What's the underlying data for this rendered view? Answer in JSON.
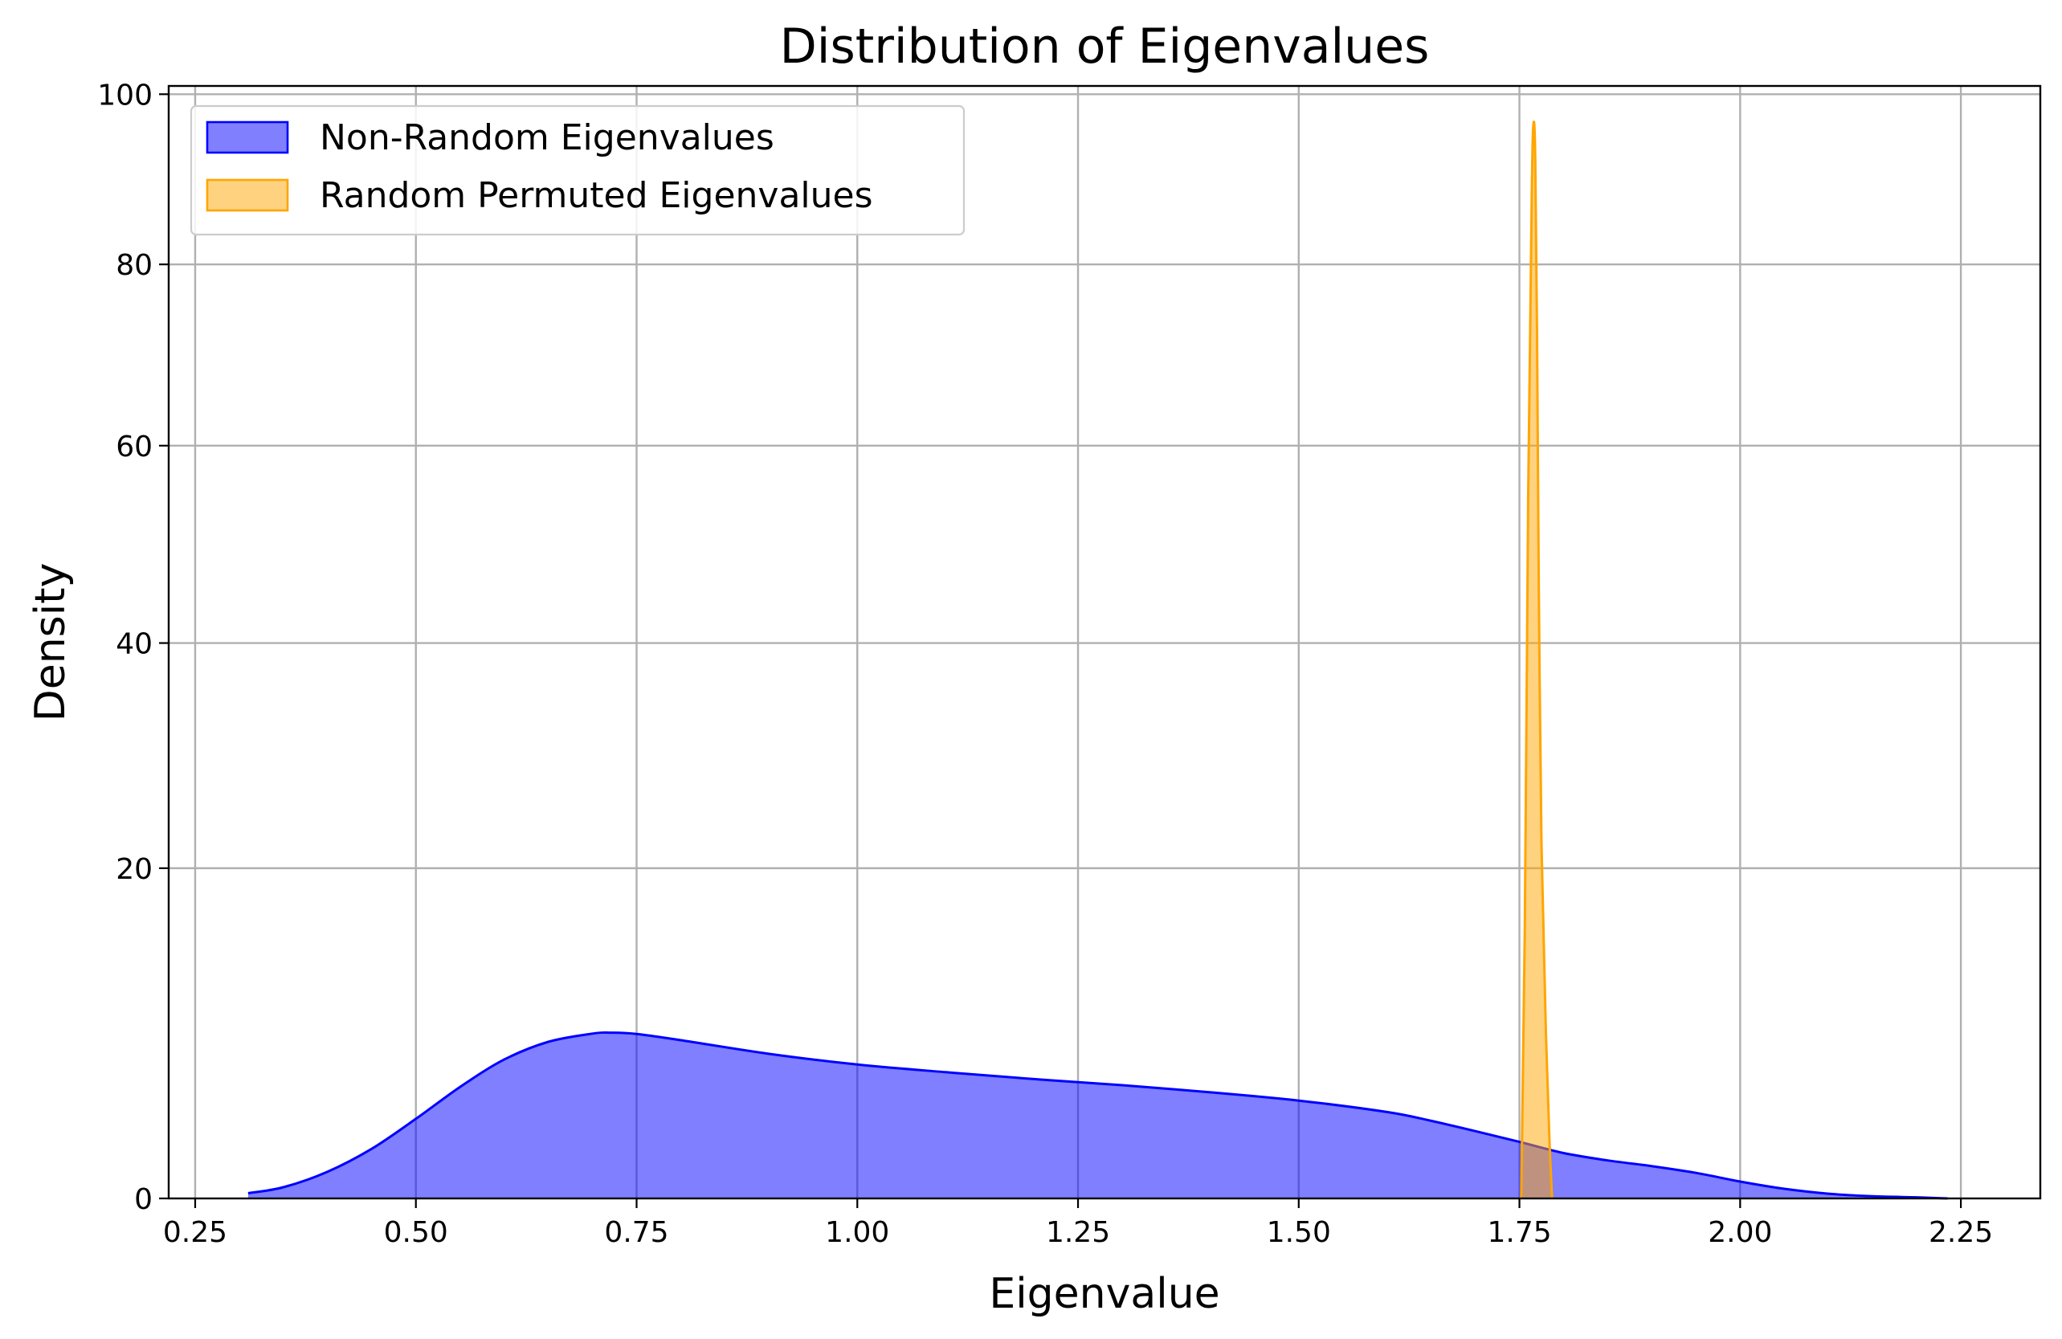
{
  "chart_data": {
    "type": "area",
    "title": "Distribution of Eigenvalues",
    "xlabel": "Eigenvalue",
    "ylabel": "Density",
    "xlim": [
      0.22,
      2.34
    ],
    "ylim": [
      0,
      101
    ],
    "y_scale": "power-0.75",
    "grid": true,
    "legend_position": "top-left",
    "x_ticks": [
      "0.25",
      "0.50",
      "0.75",
      "1.00",
      "1.25",
      "1.50",
      "1.75",
      "2.00",
      "2.25"
    ],
    "x_tick_values": [
      0.25,
      0.5,
      0.75,
      1.0,
      1.25,
      1.5,
      1.75,
      2.0,
      2.25
    ],
    "y_ticks": [
      "0",
      "20",
      "40",
      "60",
      "80",
      "100"
    ],
    "y_tick_values": [
      0,
      20,
      40,
      60,
      80,
      100
    ],
    "series": [
      {
        "name": "Non-Random Eigenvalues",
        "color": "#0000ff",
        "fill_color": "#8080ff",
        "x": [
          0.31,
          0.35,
          0.4,
          0.45,
          0.5,
          0.55,
          0.6,
          0.65,
          0.7,
          0.72,
          0.75,
          0.8,
          0.9,
          1.0,
          1.1,
          1.2,
          1.3,
          1.4,
          1.5,
          1.6,
          1.65,
          1.7,
          1.75,
          1.8,
          1.85,
          1.9,
          1.95,
          2.0,
          2.05,
          2.1,
          2.15,
          2.2,
          2.235
        ],
        "y": [
          0.08,
          0.22,
          0.7,
          1.6,
          3.0,
          4.7,
          6.3,
          7.4,
          7.92,
          7.98,
          7.9,
          7.5,
          6.65,
          6.0,
          5.55,
          5.15,
          4.8,
          4.4,
          3.95,
          3.35,
          2.9,
          2.4,
          1.9,
          1.42,
          1.12,
          0.9,
          0.66,
          0.38,
          0.18,
          0.07,
          0.025,
          0.01,
          0.0
        ]
      },
      {
        "name": "Random Permuted Eigenvalues",
        "color": "#ffa500",
        "fill_color": "#ffd280",
        "x": [
          1.752,
          1.756,
          1.76,
          1.764,
          1.766,
          1.768,
          1.77,
          1.772,
          1.775,
          1.78,
          1.784,
          1.787
        ],
        "y": [
          0.0,
          15.0,
          55.0,
          88.0,
          96.5,
          92.0,
          72.0,
          45.0,
          22.0,
          8.0,
          2.0,
          0.0
        ]
      }
    ]
  }
}
